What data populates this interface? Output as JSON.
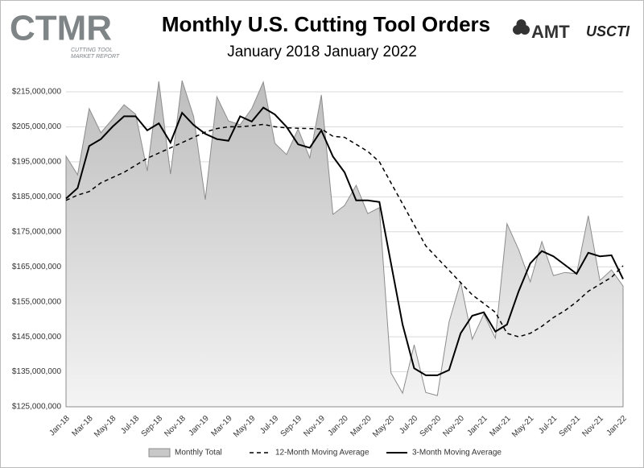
{
  "header": {
    "logo_left": "CTMR",
    "logo_left_sub_1": "CUTTING TOOL",
    "logo_left_sub_2": "MARKET REPORT",
    "logo_right_1": "AMT",
    "logo_right_2": "USCTI"
  },
  "chart_data": {
    "type": "line",
    "title": "Monthly U.S. Cutting Tool Orders",
    "subtitle": "January 2018 January 2022",
    "categories": [
      "Jan-18",
      null,
      "Mar-18",
      null,
      "May-18",
      null,
      "Jul-18",
      null,
      "Sep-18",
      null,
      "Nov-18",
      null,
      "Jan-19",
      null,
      "Mar-19",
      null,
      "May-19",
      null,
      "Jul-19",
      null,
      "Sep-19",
      null,
      "Nov-19",
      null,
      "Jan-20",
      null,
      "Mar-20",
      null,
      "May-20",
      null,
      "Jul-20",
      null,
      "Sep-20",
      null,
      "Nov-20",
      null,
      "Jan-21",
      null,
      "Mar-21",
      null,
      "May-21",
      null,
      "Jul-21",
      null,
      "Sep-21",
      null,
      "Nov-21",
      null,
      "Jan-22"
    ],
    "series": [
      {
        "name": "Monthly Total",
        "style": "area",
        "color": "#c8c8c8",
        "stroke": "#8c8c8c",
        "values": [
          196600000,
          191300000,
          210200000,
          203300000,
          207200000,
          211300000,
          208600000,
          192400000,
          218000000,
          191500000,
          218200000,
          207900000,
          184200000,
          213600000,
          206700000,
          205600000,
          210200000,
          217800000,
          200300000,
          197100000,
          204400000,
          196100000,
          214100000,
          180000000,
          182500000,
          188300000,
          180200000,
          181900000,
          134700000,
          128900000,
          142700000,
          129100000,
          128200000,
          149200000,
          160700000,
          144300000,
          151500000,
          144600000,
          177300000,
          169900000,
          160700000,
          172200000,
          162500000,
          163400000,
          163000000,
          179600000,
          161100000,
          164100000,
          159500000
        ]
      },
      {
        "name": "12-Month Moving Average",
        "style": "dashed",
        "color": "#000000",
        "values": [
          184000000,
          185500000,
          186500000,
          189000000,
          190500000,
          192000000,
          194000000,
          196000000,
          197500000,
          199000000,
          200500000,
          202000000,
          203500000,
          204500000,
          205000000,
          205000000,
          205300000,
          205700000,
          205000000,
          204700000,
          204600000,
          204500000,
          204400000,
          202300000,
          202000000,
          200000000,
          198000000,
          195000000,
          189000000,
          183000000,
          177000000,
          171000000,
          167500000,
          164000000,
          160500000,
          157000000,
          154500000,
          152000000,
          146000000,
          145000000,
          146000000,
          148000000,
          150500000,
          152500000,
          155000000,
          158000000,
          160000000,
          162000000,
          165300000
        ]
      },
      {
        "name": "3-Month Moving Average",
        "style": "solid",
        "color": "#000000",
        "values": [
          184500000,
          187500000,
          199500000,
          201500000,
          205000000,
          208000000,
          208000000,
          204000000,
          206000000,
          200500000,
          209000000,
          205500000,
          203000000,
          201500000,
          201000000,
          208000000,
          206500000,
          210500000,
          208500000,
          205000000,
          200000000,
          199000000,
          204000000,
          196500000,
          192000000,
          184000000,
          184000000,
          183500000,
          166000000,
          148500000,
          136000000,
          134000000,
          134000000,
          135500000,
          146000000,
          151000000,
          152000000,
          146500000,
          148500000,
          158000000,
          166000000,
          169500000,
          168000000,
          165500000,
          163000000,
          169000000,
          168000000,
          168300000,
          161500000
        ]
      }
    ],
    "ylim": [
      125000000,
      215000000
    ],
    "yticks": [
      {
        "value": 125000000,
        "label": "$125,000,000"
      },
      {
        "value": 135000000,
        "label": "$135,000,000"
      },
      {
        "value": 145000000,
        "label": "$145,000,000"
      },
      {
        "value": 155000000,
        "label": "$155,000,000"
      },
      {
        "value": 165000000,
        "label": "$165,000,000"
      },
      {
        "value": 175000000,
        "label": "$175,000,000"
      },
      {
        "value": 185000000,
        "label": "$185,000,000"
      },
      {
        "value": 195000000,
        "label": "$195,000,000"
      },
      {
        "value": 205000000,
        "label": "$205,000,000"
      },
      {
        "value": 215000000,
        "label": "$215,000,000"
      }
    ],
    "grid": true,
    "legend": "bottom"
  }
}
